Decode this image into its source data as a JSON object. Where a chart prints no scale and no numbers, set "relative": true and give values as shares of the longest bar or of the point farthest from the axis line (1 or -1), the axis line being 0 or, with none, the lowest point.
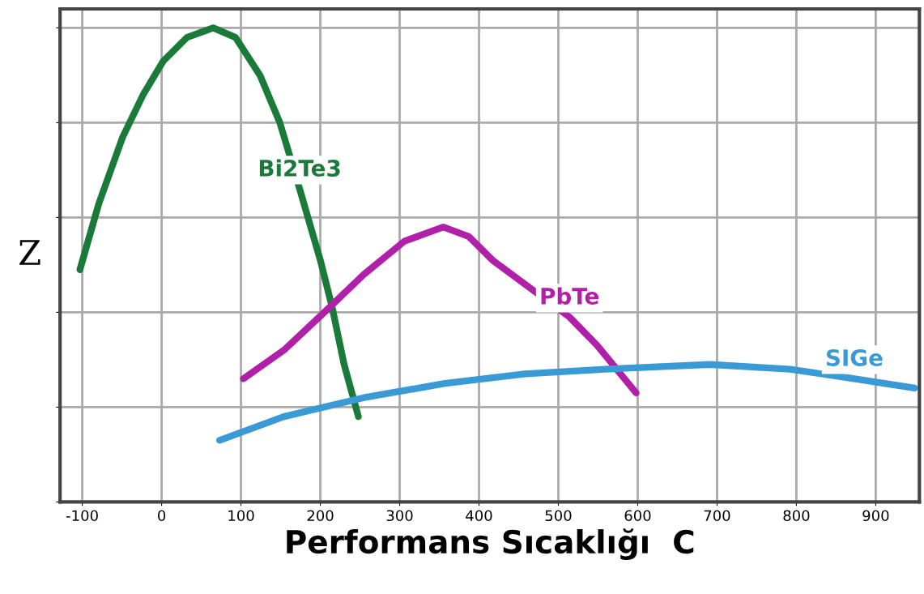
{
  "chart_data": {
    "type": "line",
    "xlabel": "Performans Sıcaklığı  C",
    "ylabel": "Z",
    "relative": true,
    "xlim": [
      -128,
      955
    ],
    "xticks": [
      -100,
      0,
      100,
      200,
      300,
      400,
      500,
      600,
      700,
      800,
      900
    ],
    "grid": true,
    "tick_labels": "x",
    "series": [
      {
        "name": "Bi2Te3",
        "color": "#1a7a3a",
        "x": [
          -103,
          -79,
          -49,
          -23,
          2,
          32,
          65,
          93,
          124,
          149,
          174,
          200,
          215,
          230,
          248
        ],
        "values": [
          0.49,
          0.63,
          0.77,
          0.86,
          0.93,
          0.98,
          1.0,
          0.98,
          0.9,
          0.8,
          0.66,
          0.51,
          0.41,
          0.29,
          0.18
        ]
      },
      {
        "name": "PbTe",
        "color": "#b020a8",
        "x": [
          103,
          154,
          205,
          255,
          306,
          355,
          387,
          417,
          514,
          549,
          598
        ],
        "values": [
          0.26,
          0.32,
          0.4,
          0.48,
          0.55,
          0.58,
          0.56,
          0.51,
          0.39,
          0.33,
          0.23
        ]
      },
      {
        "name": "SIGe",
        "color": "#3a9ad6",
        "x": [
          73,
          154,
          255,
          357,
          458,
          559,
          691,
          792,
          873,
          949
        ],
        "values": [
          0.13,
          0.18,
          0.22,
          0.25,
          0.27,
          0.28,
          0.29,
          0.28,
          0.26,
          0.24
        ]
      }
    ]
  }
}
